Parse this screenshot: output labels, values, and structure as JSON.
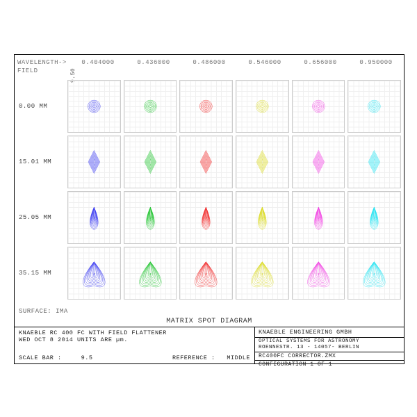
{
  "title": "MATRIX SPOT DIAGRAM",
  "header": {
    "wavelength_label": "WAVELENGTH->",
    "field_label": "FIELD",
    "wavelengths": [
      "0.404000",
      "0.436000",
      "0.486000",
      "0.546000",
      "0.656000",
      "0.950000"
    ]
  },
  "scale_bar_vert": "9.50",
  "fields": [
    "0.00 MM",
    "15.01 MM",
    "25.05 MM",
    "35.15 MM"
  ],
  "surface_label": "SURFACE: IMA",
  "colors": {
    "col1": "#2a2af0",
    "col2": "#10c020",
    "col3": "#f01818",
    "col4": "#d8d810",
    "col5": "#f030e0",
    "col6": "#10e0f0"
  },
  "info": {
    "instrument": "KNAEBLE RC 400 FC WITH FIELD FLATTENER",
    "date_units": "WED OCT 8 2014  UNITS ARE µm.",
    "scale_bar_lbl": "SCALE BAR :",
    "scale_bar_val": "9.5",
    "reference_lbl": "REFERENCE :",
    "reference_val": "MIDDLE",
    "company": "KNAEBLE ENGINEERING GMBH",
    "addr1": "OPTICAL SYSTEMS FOR ASTRONOMY",
    "addr2": "ROENNESTR. 13 - 14057- BERLIN",
    "file": "RC400FC CORRECTOR.ZMX",
    "config": "CONFIGURATION 1 OF 1"
  },
  "spots": {
    "shape_by_row": [
      "ring",
      "diamond",
      "drop",
      "coma"
    ],
    "color_by_col": [
      "col1",
      "col2",
      "col3",
      "col4",
      "col5",
      "col6"
    ],
    "opacity": 0.9,
    "stroke_width": 0.6
  }
}
